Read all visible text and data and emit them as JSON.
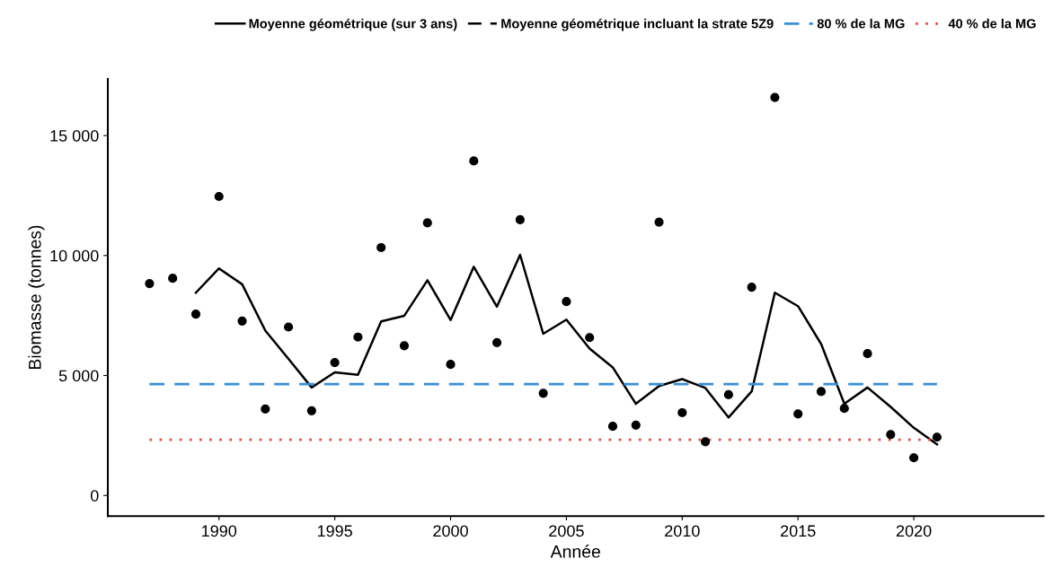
{
  "chart_data": {
    "type": "line",
    "xlabel": "Année",
    "ylabel": "Biomasse (tonnes)",
    "x": [
      1987,
      1988,
      1989,
      1990,
      1991,
      1992,
      1993,
      1994,
      1995,
      1996,
      1997,
      1998,
      1999,
      2000,
      2001,
      2002,
      2003,
      2004,
      2005,
      2006,
      2007,
      2008,
      2009,
      2010,
      2011,
      2012,
      2013,
      2014,
      2015,
      2016,
      2017,
      2018,
      2019,
      2020,
      2021
    ],
    "series": [
      {
        "name": "Moyenne géométrique (sur 3 ans)",
        "color": "#000000",
        "line_style": "solid",
        "values": [
          null,
          null,
          8450,
          9460,
          8800,
          6870,
          5690,
          4500,
          5130,
          5030,
          7250,
          7490,
          8970,
          7310,
          9530,
          7870,
          10030,
          6740,
          7330,
          6120,
          5340,
          3820,
          4560,
          4850,
          4480,
          3250,
          4340,
          8450,
          7890,
          6310,
          3820,
          4500,
          3690,
          2820,
          2130
        ]
      },
      {
        "name": "Moyenne géométrique incluant la strate 5Z9",
        "color": "#000000",
        "line_style": "dashed",
        "values": [
          null,
          null,
          null,
          null,
          null,
          null,
          null,
          null,
          null,
          null,
          null,
          null,
          null,
          null,
          null,
          null,
          null,
          null,
          null,
          null,
          null,
          null,
          null,
          null,
          null,
          null,
          null,
          null,
          null,
          null,
          null,
          null,
          null,
          null,
          null
        ]
      },
      {
        "type": "scatter",
        "color": "#000000",
        "marker": "circle",
        "values": [
          8830,
          9050,
          7560,
          12460,
          7270,
          3600,
          7020,
          3530,
          5540,
          6600,
          10330,
          6240,
          11360,
          5460,
          13940,
          6370,
          11490,
          4260,
          8080,
          6580,
          2880,
          2930,
          11390,
          3450,
          2240,
          4200,
          8680,
          16590,
          3400,
          4330,
          3630,
          5910,
          2540,
          1570,
          2430
        ]
      }
    ],
    "ref_lines": [
      {
        "axis": "y",
        "value": 4640,
        "label": "80 % de la MG",
        "color": "#3a8fd9",
        "line_style": "dashed"
      },
      {
        "axis": "y",
        "value": 2320,
        "label": "40 % de la MG",
        "color": "#d9534f",
        "line_style": "dotted"
      }
    ],
    "xlim": [
      1985.2,
      2025.6
    ],
    "xticks": [
      1990,
      1995,
      2000,
      2005,
      2010,
      2015,
      2020
    ],
    "ylim": [
      -860,
      17360
    ],
    "yticks": [
      {
        "value": 0,
        "label": "0"
      },
      {
        "value": 5000,
        "label": "5 000"
      },
      {
        "value": 10000,
        "label": "10 000"
      },
      {
        "value": 15000,
        "label": "15 000"
      }
    ],
    "grid": false,
    "legend": "top"
  }
}
